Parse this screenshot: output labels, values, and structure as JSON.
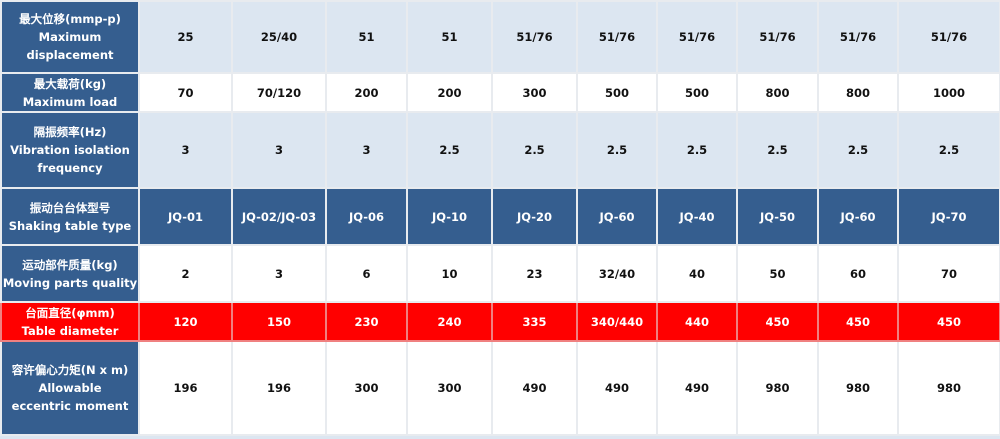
{
  "rows": [
    {
      "label_cn": "最大位移(mmp-p)",
      "label_en": "Maximum displacement",
      "values": [
        "25",
        "25/40",
        "51",
        "51",
        "51/76",
        "51/76",
        "51/76",
        "51/76",
        "51/76",
        "51/76"
      ]
    },
    {
      "label_cn": "最大载荷(kg)",
      "label_en": "Maximum load",
      "values": [
        "70",
        "70/120",
        "200",
        "200",
        "300",
        "500",
        "500",
        "800",
        "800",
        "1000"
      ]
    },
    {
      "label_cn": "隔振频率(Hz)",
      "label_en": "Vibration isolation frequency",
      "values": [
        "3",
        "3",
        "3",
        "2.5",
        "2.5",
        "2.5",
        "2.5",
        "2.5",
        "2.5",
        "2.5"
      ]
    },
    {
      "label_cn": "振动台台体型号",
      "label_en": "Shaking table type",
      "values": [
        "JQ-01",
        "JQ-02/JQ-03",
        "JQ-06",
        "JQ-10",
        "JQ-20",
        "JQ-60",
        "JQ-40",
        "JQ-50",
        "JQ-60",
        "JQ-70"
      ]
    },
    {
      "label_cn": "运动部件质量(kg)",
      "label_en": "Moving parts quality",
      "values": [
        "2",
        "3",
        "6",
        "10",
        "23",
        "32/40",
        "40",
        "50",
        "60",
        "70"
      ]
    },
    {
      "label_cn": "台面直径(φmm)",
      "label_en": "Table diameter",
      "values": [
        "120",
        "150",
        "230",
        "240",
        "335",
        "340/440",
        "440",
        "450",
        "450",
        "450"
      ]
    },
    {
      "label_cn": "容许偏心力矩(N x m)",
      "label_en": "Allowable eccentric moment",
      "values": [
        "196",
        "196",
        "300",
        "300",
        "490",
        "490",
        "490",
        "980",
        "980",
        "980"
      ]
    }
  ],
  "colors": {
    "header": "#355e8f",
    "light": "#dce6f1",
    "highlight": "#ff0000"
  }
}
